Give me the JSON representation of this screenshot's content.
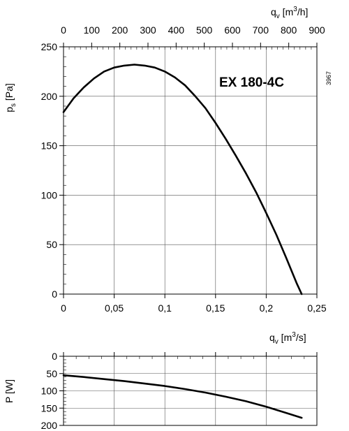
{
  "chart_data": [
    {
      "type": "line",
      "model_label": "EX 180-4C",
      "code_label": "3967",
      "ylabel": {
        "main": "p",
        "sub": "s",
        "unit": " [Pa]"
      },
      "xlabel_top": {
        "main": "q",
        "sub": "v",
        "unit_prefix": " [m",
        "unit_sup": "3",
        "unit_suffix": "/h]"
      },
      "xlabel_bottom": {
        "main": "q",
        "sub": "v",
        "unit_prefix": " [m",
        "unit_sup": "3",
        "unit_suffix": "/s]"
      },
      "xlim": [
        0,
        0.25
      ],
      "ylim": [
        0,
        250
      ],
      "x_ticks": [
        {
          "value": 0,
          "label": "0"
        },
        {
          "value": 0.05,
          "label": "0,05"
        },
        {
          "value": 0.1,
          "label": "0,1"
        },
        {
          "value": 0.15,
          "label": "0,15"
        },
        {
          "value": 0.2,
          "label": "0,2"
        },
        {
          "value": 0.25,
          "label": "0,25"
        }
      ],
      "y_ticks": [
        {
          "value": 0,
          "label": "0"
        },
        {
          "value": 50,
          "label": "50"
        },
        {
          "value": 100,
          "label": "100"
        },
        {
          "value": 150,
          "label": "150"
        },
        {
          "value": 200,
          "label": "200"
        },
        {
          "value": 250,
          "label": "250"
        }
      ],
      "x_top_ticks": [
        {
          "value": 0,
          "label": "0"
        },
        {
          "value": 100,
          "label": "100"
        },
        {
          "value": 200,
          "label": "200"
        },
        {
          "value": 300,
          "label": "300"
        },
        {
          "value": 400,
          "label": "400"
        },
        {
          "value": 500,
          "label": "500"
        },
        {
          "value": 600,
          "label": "600"
        },
        {
          "value": 700,
          "label": "700"
        },
        {
          "value": 800,
          "label": "800"
        },
        {
          "value": 900,
          "label": "900"
        }
      ],
      "x_top_range": [
        0,
        900
      ],
      "grid": true,
      "series": [
        {
          "x": [
            0,
            0.01,
            0.02,
            0.03,
            0.04,
            0.05,
            0.06,
            0.07,
            0.08,
            0.09,
            0.1,
            0.11,
            0.12,
            0.13,
            0.14,
            0.15,
            0.16,
            0.17,
            0.18,
            0.19,
            0.2,
            0.21,
            0.22,
            0.23,
            0.235
          ],
          "y": [
            184,
            198,
            209,
            218,
            225,
            229,
            231,
            232,
            231,
            229,
            225,
            219,
            211,
            200,
            188,
            173,
            157,
            140,
            122,
            103,
            82,
            60,
            36,
            11,
            0
          ]
        }
      ]
    },
    {
      "type": "line",
      "ylabel": "P [W]",
      "xlim": [
        0,
        0.25
      ],
      "ylim": [
        0,
        200
      ],
      "y_inverted": true,
      "y_ticks": [
        {
          "value": 0,
          "label": "0"
        },
        {
          "value": 50,
          "label": "50"
        },
        {
          "value": 100,
          "label": "100"
        },
        {
          "value": 150,
          "label": "150"
        },
        {
          "value": 200,
          "label": "200"
        }
      ],
      "grid": true,
      "series": [
        {
          "x": [
            0,
            0.02,
            0.04,
            0.06,
            0.08,
            0.1,
            0.12,
            0.14,
            0.16,
            0.18,
            0.2,
            0.22,
            0.235
          ],
          "y": [
            55,
            60,
            66,
            72,
            79,
            86,
            95,
            105,
            117,
            130,
            146,
            164,
            178
          ]
        }
      ]
    }
  ]
}
